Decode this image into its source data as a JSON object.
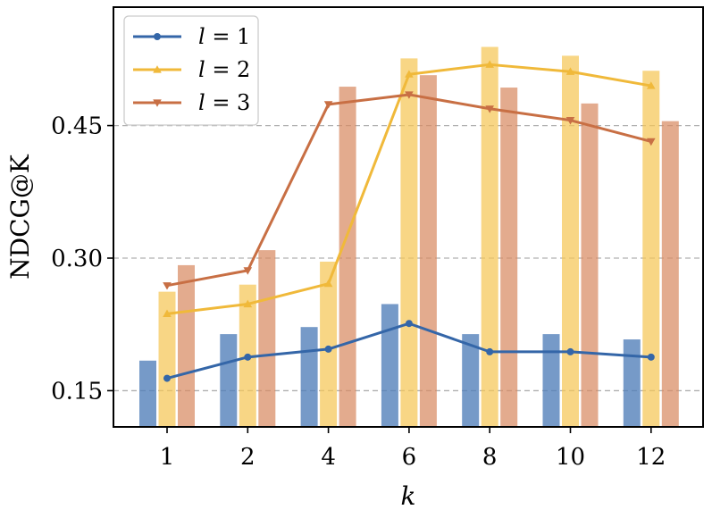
{
  "chart_data": {
    "type": "bar",
    "title": "",
    "xlabel": "k",
    "ylabel": "NDCG@K",
    "categories": [
      "1",
      "2",
      "4",
      "6",
      "8",
      "10",
      "12"
    ],
    "yticks": [
      "0.15",
      "0.30",
      "0.45"
    ],
    "ytick_values": [
      0.15,
      0.3,
      0.45
    ],
    "ylim": [
      0.109,
      0.584
    ],
    "grid": "horizontal dashed",
    "legend_position": "top-left",
    "bar_series": [
      {
        "name": "l = 1",
        "color": "#4f7db8",
        "values": [
          0.184,
          0.214,
          0.222,
          0.248,
          0.214,
          0.214,
          0.208
        ]
      },
      {
        "name": "l = 2",
        "color": "#f5c656",
        "values": [
          0.262,
          0.27,
          0.296,
          0.526,
          0.539,
          0.529,
          0.512
        ]
      },
      {
        "name": "l = 3",
        "color": "#d88a62",
        "values": [
          0.292,
          0.309,
          0.494,
          0.507,
          0.493,
          0.475,
          0.455
        ]
      }
    ],
    "line_series": [
      {
        "name": "l = 1",
        "color": "#3466a8",
        "marker": "circle",
        "values": [
          0.164,
          0.188,
          0.197,
          0.226,
          0.194,
          0.194,
          0.188
        ]
      },
      {
        "name": "l = 2",
        "color": "#f0b93a",
        "marker": "triangle-up",
        "values": [
          0.237,
          0.248,
          0.271,
          0.508,
          0.519,
          0.511,
          0.495
        ]
      },
      {
        "name": "l = 3",
        "color": "#c86f44",
        "marker": "triangle-down",
        "values": [
          0.269,
          0.286,
          0.474,
          0.485,
          0.469,
          0.456,
          0.432
        ]
      }
    ],
    "legend": [
      {
        "symbol": "l",
        "eq": "= 1",
        "color": "#3466a8",
        "marker": "circle"
      },
      {
        "symbol": "l",
        "eq": "= 2",
        "color": "#f0b93a",
        "marker": "triangle-up"
      },
      {
        "symbol": "l",
        "eq": "= 3",
        "color": "#c86f44",
        "marker": "triangle-down"
      }
    ]
  }
}
